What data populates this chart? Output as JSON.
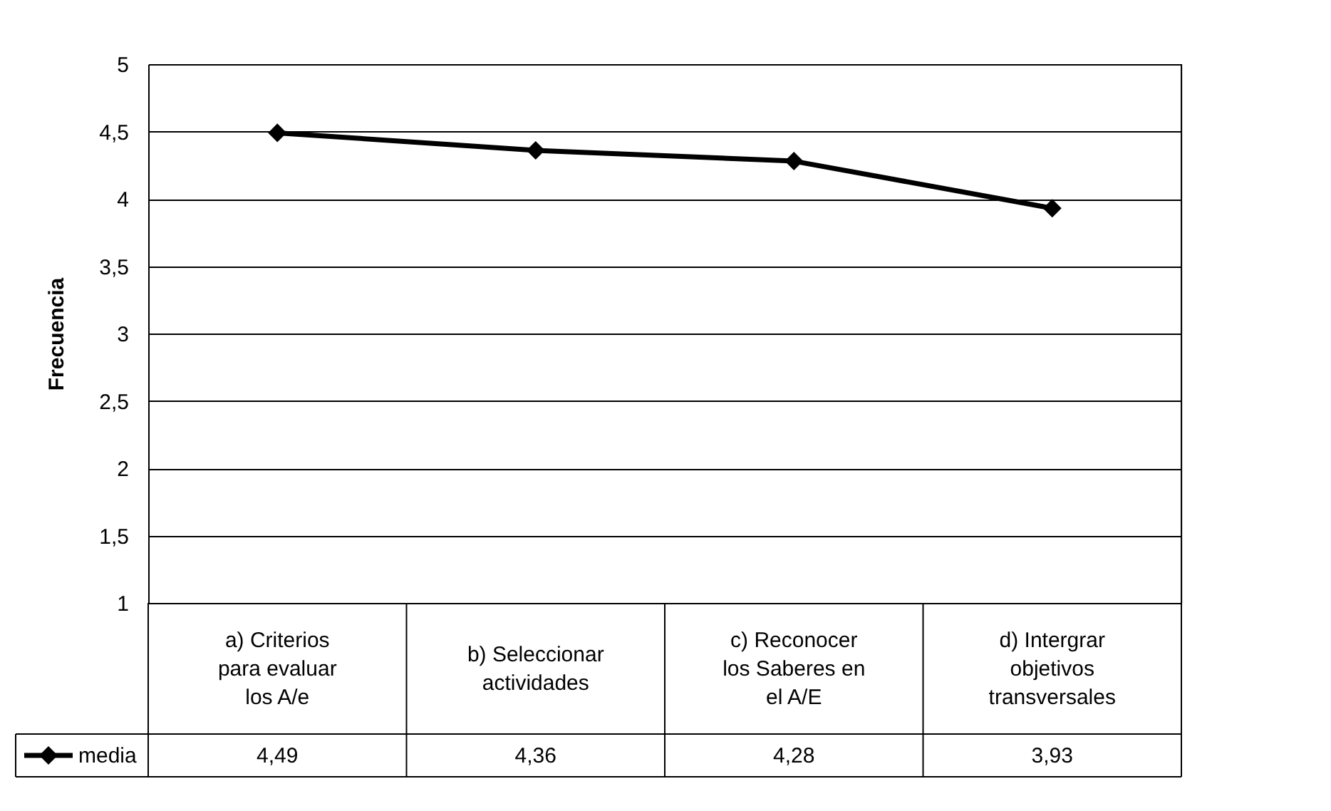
{
  "chart_data": {
    "type": "line",
    "ylabel": "Frecuencia",
    "categories": [
      "a) Criterios para evaluar los A/e",
      "b) Seleccionar actividades",
      "c) Reconocer los Saberes en el A/E",
      "d) Intergrar objetivos transversales"
    ],
    "series": [
      {
        "name": "media",
        "color": "#000000",
        "values": [
          4.49,
          4.36,
          4.28,
          3.93
        ],
        "value_labels": [
          "4,49",
          "4,36",
          "4,28",
          "3,93"
        ]
      }
    ],
    "ylim": [
      1,
      5
    ],
    "yticks": [
      1,
      {
        "value": 1.5,
        "label": "1,5"
      },
      2,
      {
        "value": 2.5,
        "label": "2,5"
      },
      3,
      {
        "value": 3.5,
        "label": "3,5"
      },
      4,
      {
        "value": 4.5,
        "label": "4,5"
      },
      5
    ],
    "grid": "y",
    "marker": "diamond",
    "line_style": "solid",
    "legend": "bottom"
  }
}
